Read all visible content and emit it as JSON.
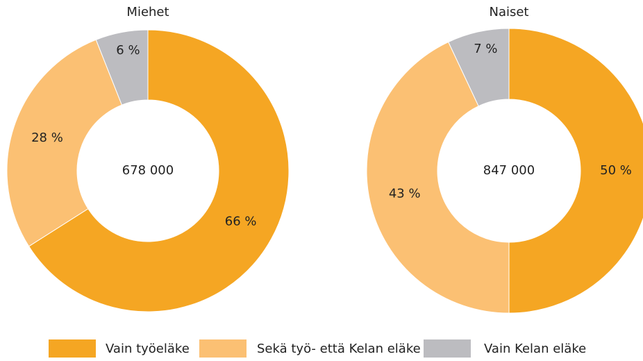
{
  "chart_data": [
    {
      "type": "donut",
      "title": "Miehet",
      "center_label": "678 000",
      "categories": [
        "Vain työeläke",
        "Sekä työ- että Kelan eläke",
        "Vain Kelan eläke"
      ],
      "values": [
        66,
        28,
        6
      ],
      "value_labels": [
        "66 %",
        "28 %",
        "6 %"
      ],
      "colors": [
        "#f5a623",
        "#fbc073",
        "#bcbcc0"
      ]
    },
    {
      "type": "donut",
      "title": "Naiset",
      "center_label": "847 000",
      "categories": [
        "Vain työeläke",
        "Sekä työ- että Kelan eläke",
        "Vain Kelan eläke"
      ],
      "values": [
        50,
        43,
        7
      ],
      "value_labels": [
        "50 %",
        "43 %",
        "7 %"
      ],
      "colors": [
        "#f5a623",
        "#fbc073",
        "#bcbcc0"
      ]
    }
  ]
}
